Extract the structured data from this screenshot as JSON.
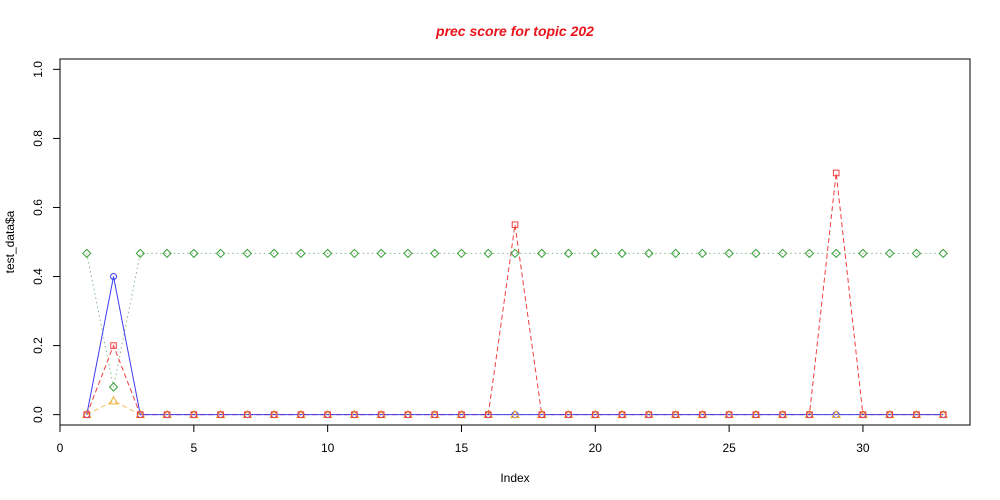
{
  "chart_data": {
    "type": "line",
    "title": "prec score for topic 202",
    "xlabel": "Index",
    "ylabel": "test_data$a",
    "xlim": [
      0,
      34
    ],
    "ylim": [
      -0.03,
      1.03
    ],
    "x_ticks": [
      0,
      5,
      10,
      15,
      20,
      25,
      30
    ],
    "y_ticks": [
      0.0,
      0.2,
      0.4,
      0.6,
      0.8,
      1.0
    ],
    "grid": false,
    "legend": "none",
    "colors": {
      "title": "#e8141b",
      "blue": "#3c3cf0",
      "red": "#f04040",
      "green": "#3aa03a",
      "orange": "#f0b030",
      "green_line": "#8ab88a",
      "orange_line": "#f0c060"
    },
    "series": [
      {
        "marker": "circle",
        "color": "#3c3cf0",
        "line": "solid",
        "line_color": "#3c3cf0",
        "x": [
          1,
          2,
          3,
          4,
          5,
          6,
          7,
          8,
          9,
          10,
          11,
          12,
          13,
          14,
          15,
          16,
          17,
          18,
          19,
          20,
          21,
          22,
          23,
          24,
          25,
          26,
          27,
          28,
          29,
          30,
          31,
          32,
          33
        ],
        "values": [
          0,
          0.4,
          0,
          0,
          0,
          0,
          0,
          0,
          0,
          0,
          0,
          0,
          0,
          0,
          0,
          0,
          0,
          0,
          0,
          0,
          0,
          0,
          0,
          0,
          0,
          0,
          0,
          0,
          0,
          0,
          0,
          0,
          0
        ]
      },
      {
        "marker": "triangle",
        "color": "#f0b030",
        "line": "dashed",
        "line_color": "#f0c060",
        "x": [
          1,
          2,
          3,
          4,
          5,
          6,
          7,
          8,
          9,
          10,
          11,
          12,
          13,
          14,
          15,
          16,
          17,
          18,
          19,
          20,
          21,
          22,
          23,
          24,
          25,
          26,
          27,
          28,
          29,
          30,
          31,
          32,
          33
        ],
        "values": [
          0,
          0.04,
          0,
          0,
          0,
          0,
          0,
          0,
          0,
          0,
          0,
          0,
          0,
          0,
          0,
          0,
          0,
          0,
          0,
          0,
          0,
          0,
          0,
          0,
          0,
          0,
          0,
          0,
          0,
          0,
          0,
          0,
          0
        ]
      },
      {
        "marker": "diamond",
        "color": "#3aa03a",
        "line": "dotted",
        "line_color": "#8ab88a",
        "x": [
          1,
          2,
          3,
          4,
          5,
          6,
          7,
          8,
          9,
          10,
          11,
          12,
          13,
          14,
          15,
          16,
          17,
          18,
          19,
          20,
          21,
          22,
          23,
          24,
          25,
          26,
          27,
          28,
          29,
          30,
          31,
          32,
          33
        ],
        "values": [
          0.467,
          0.08,
          0.467,
          0.467,
          0.467,
          0.467,
          0.467,
          0.467,
          0.467,
          0.467,
          0.467,
          0.467,
          0.467,
          0.467,
          0.467,
          0.467,
          0.467,
          0.467,
          0.467,
          0.467,
          0.467,
          0.467,
          0.467,
          0.467,
          0.467,
          0.467,
          0.467,
          0.467,
          0.467,
          0.467,
          0.467,
          0.467,
          0.467
        ]
      },
      {
        "marker": "square",
        "color": "#f04040",
        "line": "dashed",
        "line_color": "#f04040",
        "x": [
          1,
          2,
          3,
          4,
          5,
          6,
          7,
          8,
          9,
          10,
          11,
          12,
          13,
          14,
          15,
          16,
          17,
          18,
          19,
          20,
          21,
          22,
          23,
          24,
          25,
          26,
          27,
          28,
          29,
          30,
          31,
          32,
          33
        ],
        "values": [
          0,
          0.2,
          0,
          0,
          0,
          0,
          0,
          0,
          0,
          0,
          0,
          0,
          0,
          0,
          0,
          0,
          0.55,
          0,
          0,
          0,
          0,
          0,
          0,
          0,
          0,
          0,
          0,
          0,
          0.7,
          0,
          0,
          0,
          0
        ]
      }
    ]
  }
}
